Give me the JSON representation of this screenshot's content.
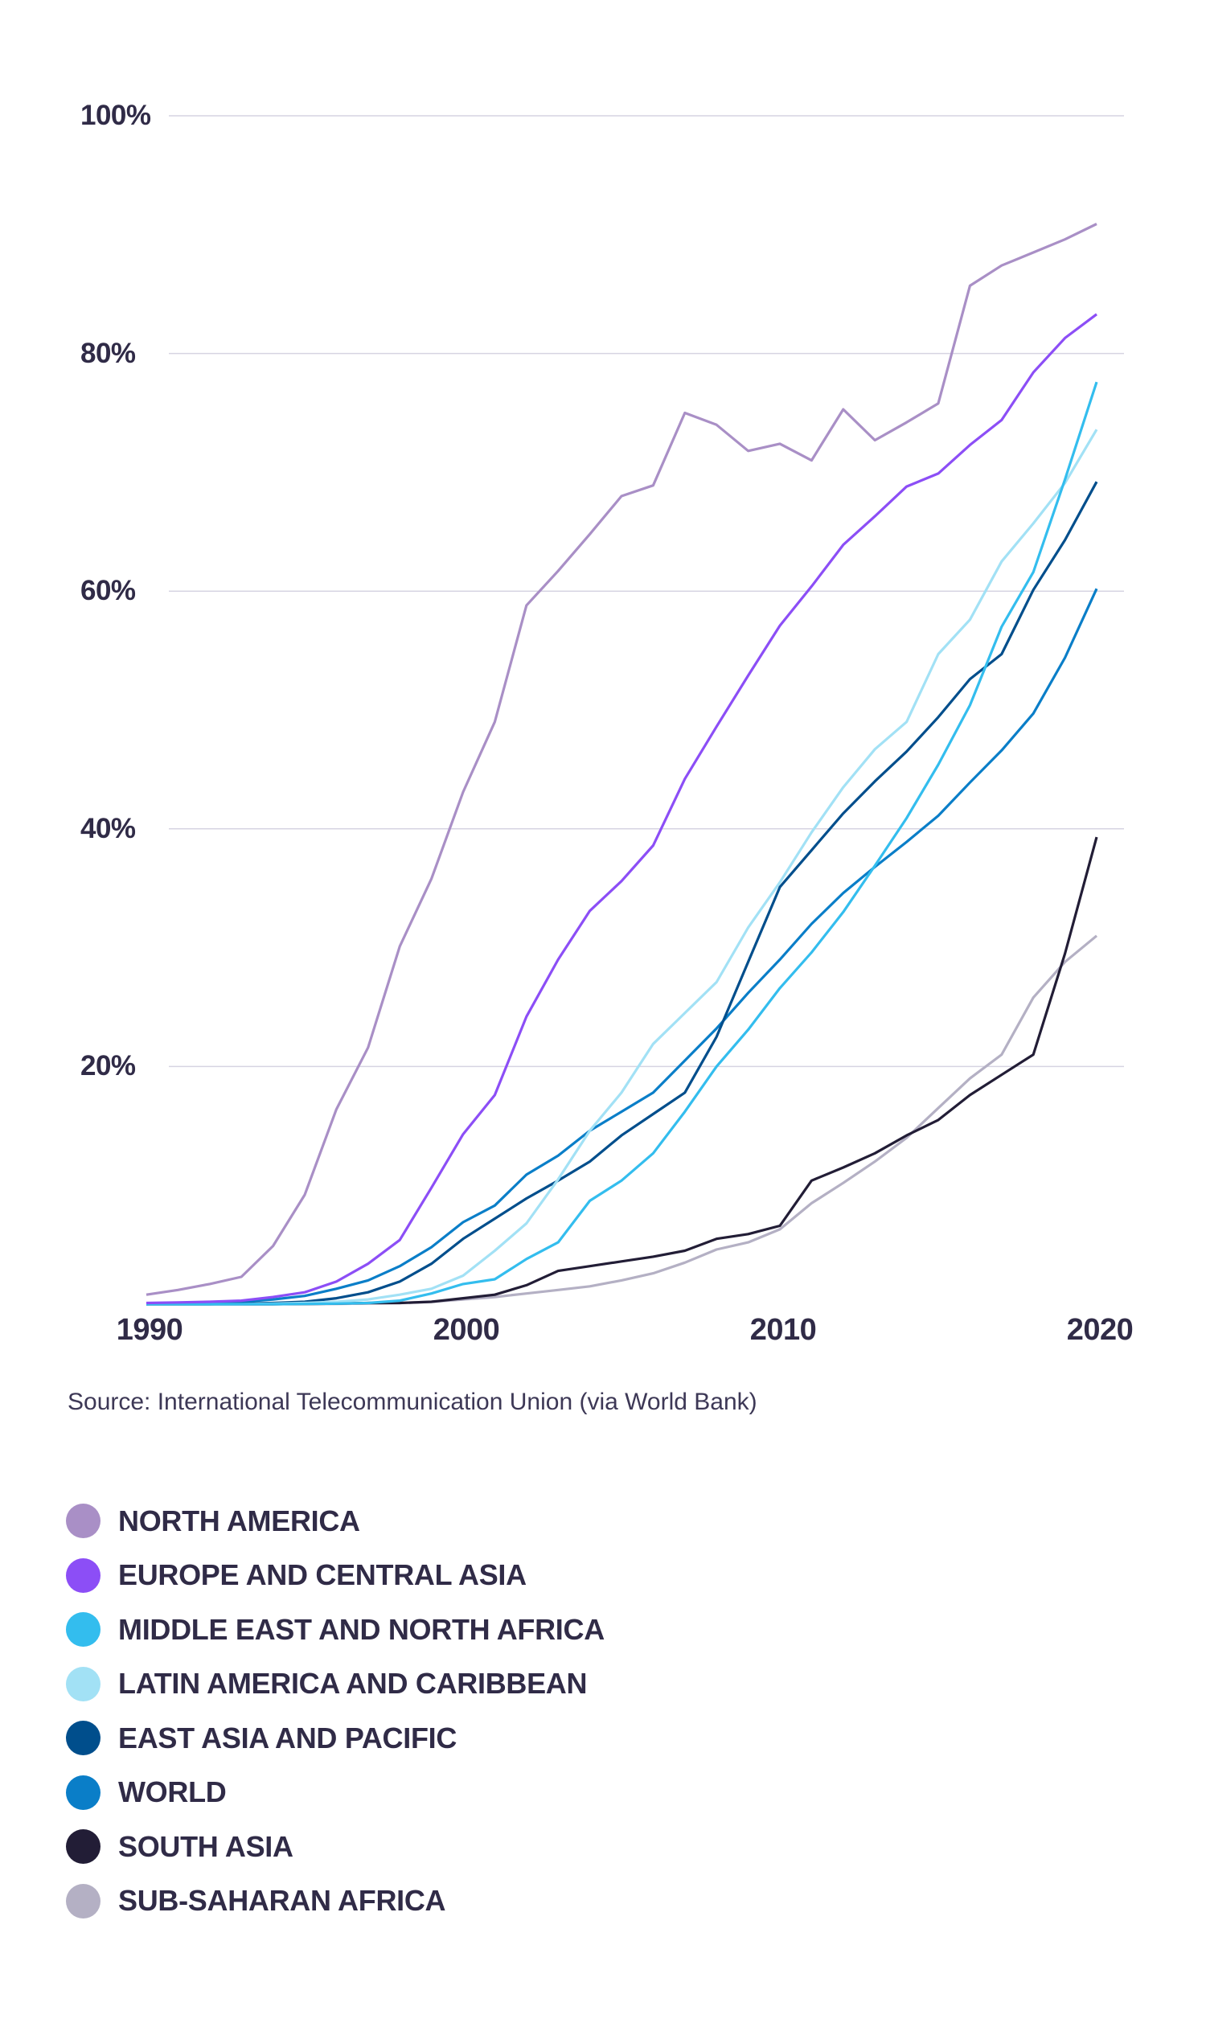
{
  "chart_data": {
    "type": "line",
    "title": "",
    "xlabel": "",
    "ylabel": "",
    "x": [
      1990,
      1991,
      1992,
      1993,
      1994,
      1995,
      1996,
      1997,
      1998,
      1999,
      2000,
      2001,
      2002,
      2003,
      2004,
      2005,
      2006,
      2007,
      2008,
      2009,
      2010,
      2011,
      2012,
      2013,
      2014,
      2015,
      2016,
      2017,
      2018,
      2019,
      2020
    ],
    "xlim": [
      1990,
      2020
    ],
    "ylim": [
      0,
      100
    ],
    "xtick_values": [
      1990,
      2000,
      2010,
      2020
    ],
    "xtick_labels": [
      "1990",
      "2000",
      "2010",
      "2020"
    ],
    "ytick_values": [
      100,
      80,
      60,
      40,
      20
    ],
    "ytick_labels": [
      "100%",
      "80%",
      "60%",
      "40%",
      "20%"
    ],
    "grid": "horizontal",
    "legend_position": "bottom",
    "series": [
      {
        "name": "NORTH AMERICA",
        "color": "#a98fc6",
        "values": [
          0.8,
          1.2,
          1.7,
          2.3,
          4.9,
          9.2,
          16.4,
          21.6,
          30.1,
          35.8,
          43.1,
          49.0,
          58.8,
          61.7,
          64.8,
          68.0,
          68.9,
          75.0,
          74.0,
          71.8,
          72.4,
          71.0,
          75.3,
          72.7,
          74.2,
          75.8,
          85.7,
          87.4,
          88.5,
          89.6,
          90.9
        ]
      },
      {
        "name": "EUROPE AND CENTRAL ASIA",
        "color": "#8c4ef6",
        "values": [
          0.1,
          0.15,
          0.2,
          0.3,
          0.6,
          1.0,
          1.9,
          3.4,
          5.4,
          9.8,
          14.3,
          17.6,
          24.2,
          29.0,
          33.1,
          35.6,
          38.6,
          44.2,
          48.6,
          52.9,
          57.1,
          60.4,
          63.9,
          66.3,
          68.8,
          69.9,
          72.3,
          74.4,
          78.4,
          81.3,
          83.3
        ]
      },
      {
        "name": "MIDDLE EAST AND NORTH AFRICA",
        "color": "#33bdee",
        "values": [
          0,
          0,
          0,
          0,
          0,
          0.02,
          0.05,
          0.1,
          0.3,
          0.9,
          1.7,
          2.1,
          3.8,
          5.2,
          8.7,
          10.4,
          12.7,
          16.2,
          20.0,
          23.1,
          26.6,
          29.6,
          33.0,
          36.9,
          40.9,
          45.4,
          50.4,
          57.0,
          61.6,
          69.4,
          77.6
        ]
      },
      {
        "name": "LATIN AMERICA AND CARIBBEAN",
        "color": "#a2e1f5",
        "values": [
          0,
          0,
          0,
          0,
          0.05,
          0.1,
          0.2,
          0.4,
          0.8,
          1.3,
          2.4,
          4.5,
          6.8,
          10.5,
          14.6,
          17.8,
          21.9,
          24.5,
          27.1,
          31.7,
          35.5,
          39.7,
          43.5,
          46.7,
          49.0,
          54.7,
          57.6,
          62.5,
          65.7,
          69.1,
          73.6
        ]
      },
      {
        "name": "EAST ASIA AND PACIFIC",
        "color": "#004e8c",
        "values": [
          0,
          0,
          0,
          0.05,
          0.1,
          0.2,
          0.5,
          1.0,
          1.9,
          3.4,
          5.5,
          7.2,
          8.9,
          10.4,
          12.0,
          14.2,
          16.0,
          17.8,
          22.5,
          28.8,
          35.1,
          38.2,
          41.3,
          44.0,
          46.5,
          49.4,
          52.6,
          54.7,
          60.1,
          64.3,
          69.2
        ]
      },
      {
        "name": "WORLD",
        "color": "#0a7ec8",
        "values": [
          0.0,
          0.1,
          0.1,
          0.2,
          0.4,
          0.7,
          1.3,
          2.0,
          3.2,
          4.8,
          6.9,
          8.3,
          10.9,
          12.5,
          14.6,
          16.2,
          17.8,
          20.5,
          23.2,
          26.2,
          29.0,
          32.0,
          34.6,
          36.8,
          38.9,
          41.1,
          43.9,
          46.6,
          49.7,
          54.4,
          60.2
        ]
      },
      {
        "name": "SOUTH ASIA",
        "color": "#221d36",
        "values": [
          0,
          0,
          0,
          0,
          0,
          0.02,
          0.05,
          0.1,
          0.1,
          0.2,
          0.5,
          0.8,
          1.6,
          2.8,
          3.2,
          3.6,
          4.0,
          4.5,
          5.5,
          5.9,
          6.6,
          10.4,
          11.5,
          12.7,
          14.2,
          15.5,
          17.6,
          19.3,
          21.0,
          29.5,
          39.3
        ]
      },
      {
        "name": "SUB-SAHARAN AFRICA",
        "color": "#b4b0c4",
        "values": [
          0,
          0,
          0,
          0,
          0,
          0.01,
          0.03,
          0.06,
          0.1,
          0.2,
          0.4,
          0.6,
          0.9,
          1.2,
          1.5,
          2.0,
          2.6,
          3.5,
          4.6,
          5.2,
          6.3,
          8.5,
          10.2,
          12.0,
          14.0,
          16.5,
          19.0,
          21.0,
          25.8,
          28.8,
          31.0
        ]
      }
    ]
  },
  "source": "Source: International Telecommunication Union (via World Bank)",
  "colors": {
    "text": "#302b47",
    "gridline": "#d6d4e2"
  }
}
